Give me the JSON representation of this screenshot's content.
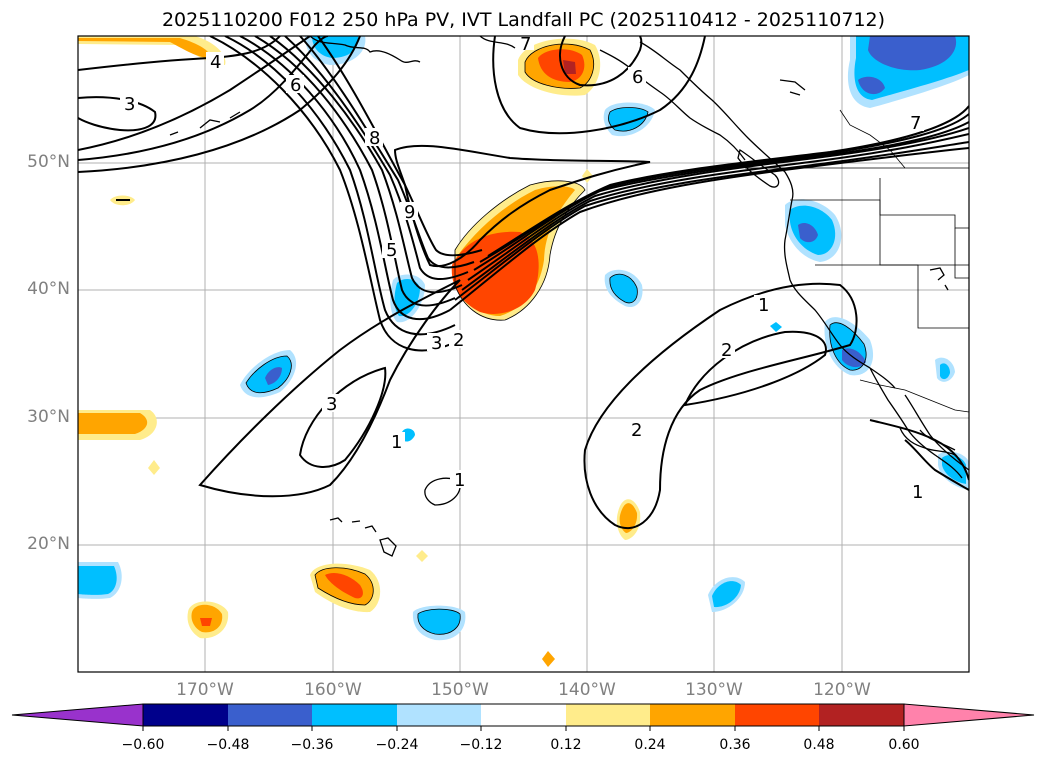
{
  "title": "2025110200 F012 250 hPa PV, IVT Landfall PC (2025110412 - 2025110712)",
  "map": {
    "lat_labels": [
      "50°N",
      "40°N",
      "30°N",
      "20°N"
    ],
    "lon_labels": [
      "170°W",
      "160°W",
      "150°W",
      "140°W",
      "130°W",
      "120°W"
    ]
  },
  "contour_labels": [
    "3",
    "4",
    "6",
    "8",
    "9",
    "5",
    "3",
    "2",
    "3",
    "1",
    "1",
    "2",
    "2",
    "1",
    "7",
    "7",
    "6",
    "1"
  ],
  "colorbar": {
    "ticks": [
      "−0.60",
      "−0.48",
      "−0.36",
      "−0.24",
      "−0.12",
      "0.12",
      "0.24",
      "0.36",
      "0.48",
      "0.60"
    ],
    "colors": [
      "#9932cc",
      "#00008b",
      "#3a5fcd",
      "#00bfff",
      "#b0e2ff",
      "#ffffff",
      "#ffec8b",
      "#ffa500",
      "#ff4500",
      "#b22222",
      "#ff82ab"
    ]
  },
  "colors": {
    "grid": "#b0b0b0",
    "positive_light": "#ffec8b",
    "positive_mid": "#ffa500",
    "positive_strong": "#ff4500",
    "positive_max": "#b22222",
    "negative_light": "#b0e2ff",
    "negative_mid": "#00bfff",
    "negative_strong": "#3a5fcd"
  }
}
